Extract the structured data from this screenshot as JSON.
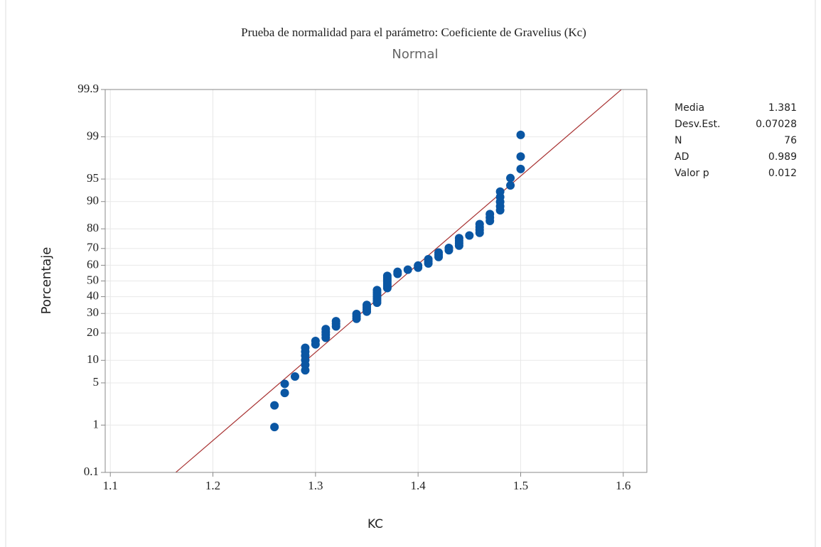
{
  "chart_data": {
    "type": "scatter",
    "title": "Prueba de normalidad para el parámetro: Coeficiente de Gravelius (Kc)",
    "subtitle": "Normal",
    "x_label": "KC",
    "y_label": "Porcentaje",
    "yscale": "normal-probability",
    "grid": true,
    "color": "#0a56a3",
    "fit_color": "#a83232",
    "xlim": [
      1.095,
      1.623
    ],
    "xticks": [
      1.1,
      1.2,
      1.3,
      1.4,
      1.5,
      1.6
    ],
    "ylim": [
      0.1,
      99.9
    ],
    "yticks": [
      0.1,
      1,
      5,
      10,
      20,
      30,
      40,
      50,
      60,
      70,
      80,
      90,
      95,
      99,
      99.9
    ],
    "x": [
      1.26,
      1.26,
      1.27,
      1.27,
      1.28,
      1.29,
      1.29,
      1.29,
      1.29,
      1.29,
      1.29,
      1.3,
      1.3,
      1.31,
      1.31,
      1.31,
      1.31,
      1.32,
      1.32,
      1.32,
      1.34,
      1.34,
      1.34,
      1.35,
      1.35,
      1.35,
      1.35,
      1.36,
      1.36,
      1.36,
      1.36,
      1.36,
      1.36,
      1.36,
      1.37,
      1.37,
      1.37,
      1.37,
      1.37,
      1.37,
      1.37,
      1.38,
      1.38,
      1.39,
      1.4,
      1.4,
      1.41,
      1.41,
      1.41,
      1.42,
      1.42,
      1.42,
      1.43,
      1.43,
      1.44,
      1.44,
      1.44,
      1.44,
      1.45,
      1.46,
      1.46,
      1.46,
      1.46,
      1.47,
      1.47,
      1.47,
      1.48,
      1.48,
      1.48,
      1.48,
      1.48,
      1.49,
      1.49,
      1.5,
      1.5,
      1.5
    ],
    "values": [
      0.92,
      2.23,
      3.53,
      4.84,
      6.15,
      7.46,
      8.77,
      10.08,
      11.39,
      12.7,
      14.01,
      15.31,
      16.62,
      17.93,
      19.24,
      20.55,
      21.86,
      23.17,
      24.48,
      25.79,
      27.09,
      28.4,
      29.71,
      31.02,
      32.33,
      33.64,
      34.95,
      36.26,
      37.57,
      38.87,
      40.18,
      41.49,
      42.8,
      44.11,
      45.42,
      46.73,
      48.04,
      49.35,
      50.65,
      51.96,
      53.27,
      54.58,
      55.89,
      57.2,
      58.51,
      59.82,
      61.13,
      62.43,
      63.74,
      65.05,
      66.36,
      67.67,
      68.98,
      70.29,
      71.6,
      72.91,
      74.21,
      75.52,
      76.83,
      78.14,
      79.45,
      80.76,
      82.07,
      83.38,
      84.69,
      85.99,
      87.3,
      88.61,
      89.92,
      91.23,
      92.54,
      93.85,
      95.16,
      96.47,
      97.77,
      99.08
    ],
    "stats": [
      {
        "label": "Media",
        "value": 1.381
      },
      {
        "label": "Desv.Est.",
        "value": 0.07028
      },
      {
        "label": "N",
        "value": 76
      },
      {
        "label": "AD",
        "value": 0.989
      },
      {
        "label": "Valor p",
        "value": 0.012
      }
    ]
  }
}
